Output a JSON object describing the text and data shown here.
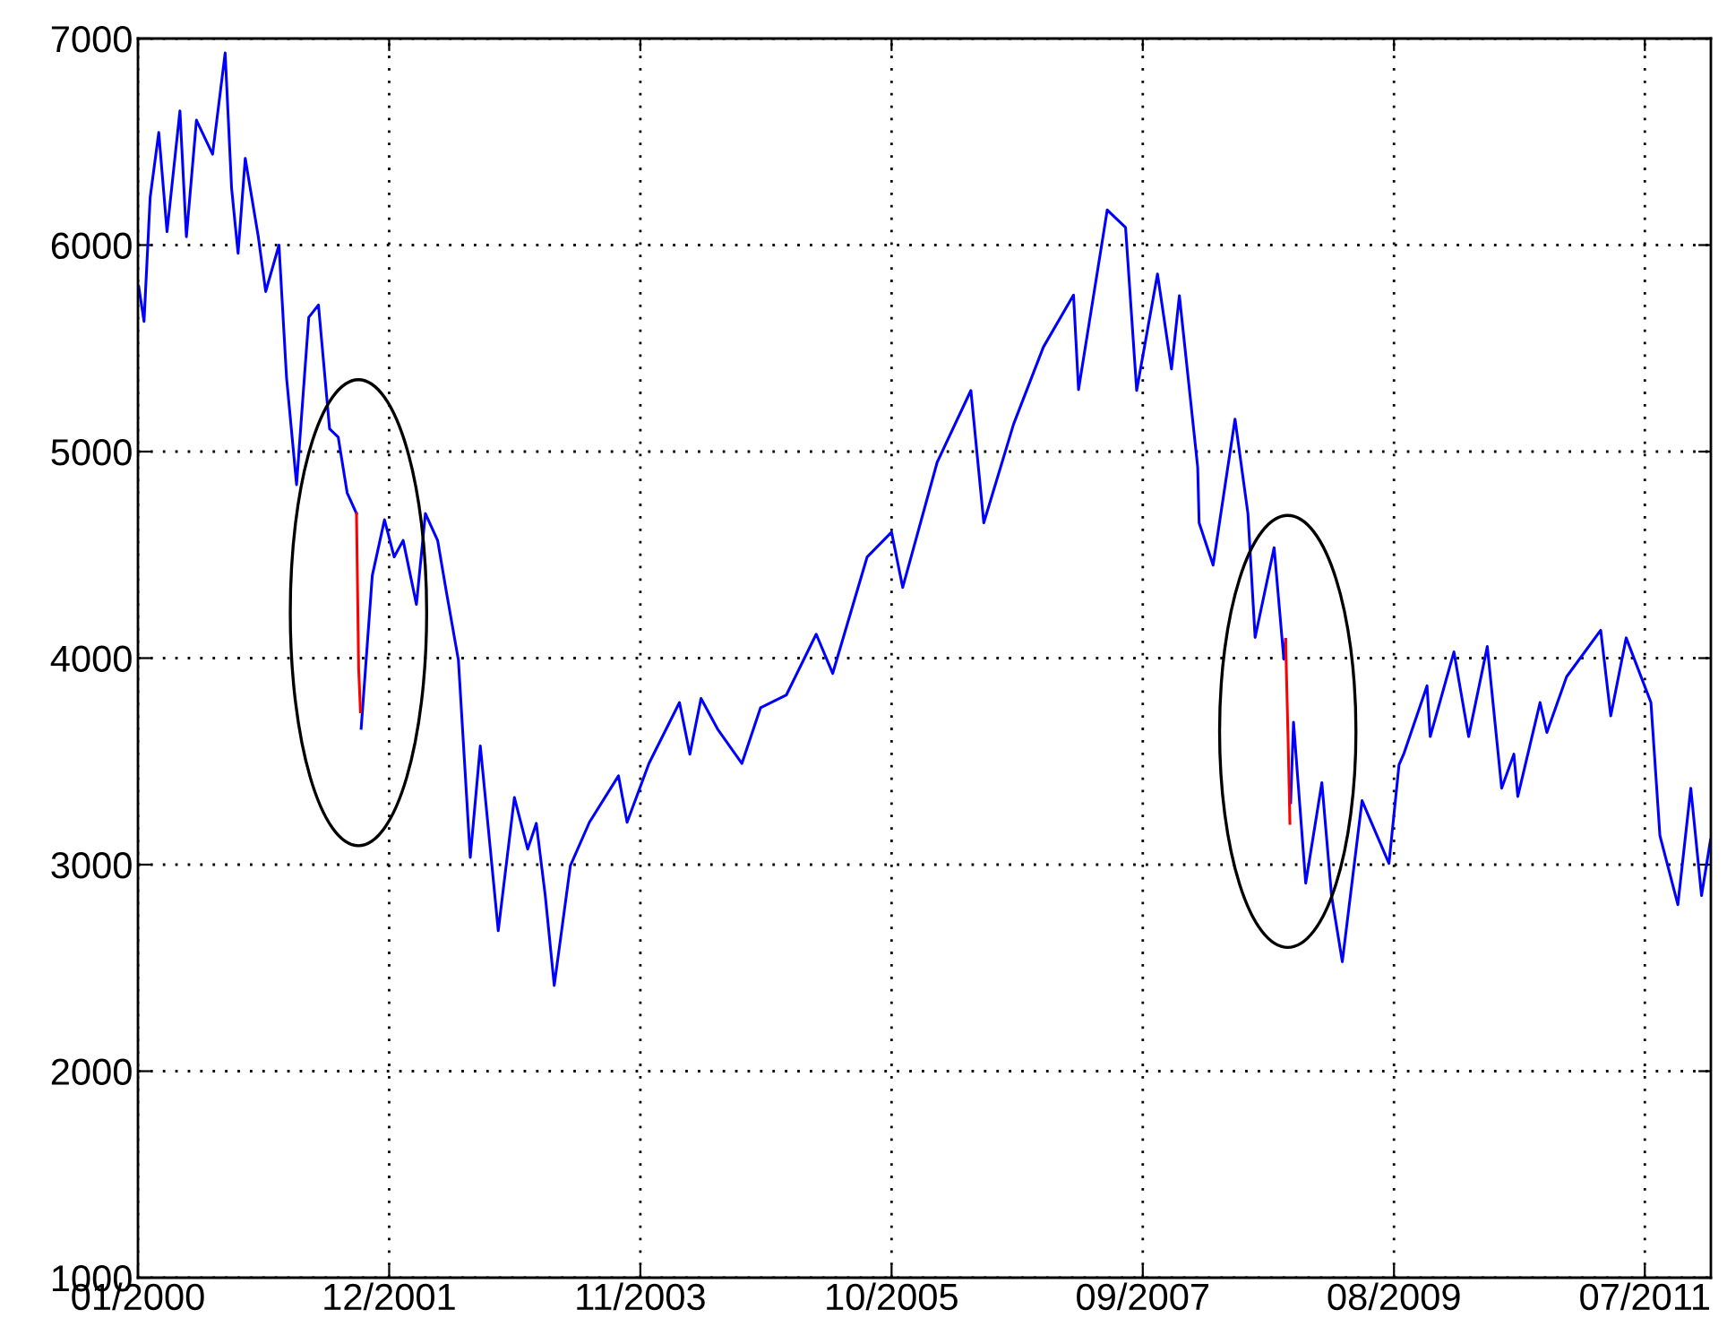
{
  "chart_data": {
    "type": "line",
    "series": [
      {
        "color": "#0000ff",
        "x": [
          "2000-01-03",
          "2000-01-18",
          "2000-02-04",
          "2000-02-28",
          "2000-03-22",
          "2000-04-27",
          "2000-05-15",
          "2000-06-12",
          "2000-07-27",
          "2000-08-31",
          "2000-09-18",
          "2000-10-06",
          "2000-10-26",
          "2000-12-01",
          "2000-12-22",
          "2001-01-28",
          "2001-02-18",
          "2001-03-18",
          "2001-04-21",
          "2001-05-18",
          "2001-06-18",
          "2001-07-12",
          "2001-08-06",
          "2001-09-01",
          "2001-09-05",
          "2001-09-14",
          "2001-10-15",
          "2001-11-18",
          "2001-12-15",
          "2002-01-09",
          "2002-02-15",
          "2002-03-12",
          "2002-04-15",
          "2002-05-09",
          "2002-06-12",
          "2002-07-15",
          "2002-08-12",
          "2002-10-01",
          "2002-11-15",
          "2002-12-22",
          "2003-01-15",
          "2003-02-09",
          "2003-03-06",
          "2003-04-20",
          "2003-06-12",
          "2003-09-01",
          "2003-09-25",
          "2003-11-25",
          "2004-02-18",
          "2004-03-18",
          "2004-04-18",
          "2004-06-03",
          "2004-08-10",
          "2004-10-01",
          "2004-12-12",
          "2005-03-05",
          "2005-04-20",
          "2005-07-25",
          "2005-10-01",
          "2005-11-01",
          "2006-02-05",
          "2006-05-10",
          "2006-06-15",
          "2006-09-06",
          "2006-11-28",
          "2007-02-20",
          "2007-03-06",
          "2007-05-25",
          "2007-07-15",
          "2007-08-15",
          "2007-10-12",
          "2007-11-20",
          "2007-12-12",
          "2008-02-01",
          "2008-02-05",
          "2008-03-15",
          "2008-05-15",
          "2008-06-20",
          "2008-07-10",
          "2008-09-01",
          "2008-09-28",
          "2008-10-03",
          "2008-10-10",
          "2008-10-17",
          "2008-10-25",
          "2008-11-28",
          "2009-01-12",
          "2009-02-08",
          "2009-03-10",
          "2009-05-04",
          "2009-07-18",
          "2009-08-15",
          "2009-08-28",
          "2009-11-01",
          "2009-11-10",
          "2010-01-15",
          "2010-02-25",
          "2010-04-18",
          "2010-05-28",
          "2010-07-01",
          "2010-07-12",
          "2010-09-12",
          "2010-10-01",
          "2010-11-25",
          "2011-02-28",
          "2011-03-28",
          "2011-05-10",
          "2011-07-18",
          "2011-08-12",
          "2011-10-01",
          "2011-11-06",
          "2011-12-06",
          "2011-12-31"
        ],
        "values": [
          5800,
          5630,
          6230,
          6545,
          6065,
          6650,
          6040,
          6605,
          6440,
          6930,
          6275,
          5960,
          6420,
          6045,
          5775,
          6000,
          5360,
          4840,
          5650,
          5710,
          5110,
          5070,
          4800,
          4700,
          null,
          3660,
          4400,
          4670,
          4490,
          4570,
          4260,
          4700,
          4570,
          4325,
          3990,
          3035,
          3575,
          2680,
          3325,
          3075,
          3200,
          2850,
          2415,
          2995,
          3205,
          3430,
          3205,
          3490,
          3785,
          3535,
          3805,
          3657,
          3490,
          3760,
          3822,
          4116,
          3926,
          4490,
          4610,
          4342,
          4948,
          5296,
          4655,
          5133,
          5506,
          5758,
          5300,
          6170,
          6085,
          5296,
          5860,
          5400,
          5755,
          4925,
          4655,
          4450,
          5157,
          4700,
          4100,
          4535,
          3995,
          4090,
          null,
          3300,
          3690,
          2910,
          3397,
          2850,
          2530,
          3310,
          3006,
          3483,
          3535,
          3866,
          3620,
          4030,
          3620,
          4056,
          3370,
          3535,
          3330,
          3785,
          3640,
          3910,
          4135,
          3720,
          4098,
          3785,
          3140,
          2806,
          3370,
          2850,
          3120
        ]
      },
      {
        "color": "#ff0000",
        "x": [
          "2001-09-01",
          "2001-09-07",
          "2001-09-12"
        ],
        "values": [
          4700,
          3950,
          3740
        ]
      },
      {
        "color": "#ff0000",
        "x": [
          "2008-10-03",
          "2008-10-10",
          "2008-10-15"
        ],
        "values": [
          4090,
          3600,
          3200
        ]
      }
    ],
    "xlim": [
      "2000-01",
      "2012-01"
    ],
    "xticks": [
      {
        "value": "2000-01",
        "label": "01/2000"
      },
      {
        "value": "2001-12",
        "label": "12/2001"
      },
      {
        "value": "2003-11",
        "label": "11/2003"
      },
      {
        "value": "2005-10",
        "label": "10/2005"
      },
      {
        "value": "2007-09",
        "label": "09/2007"
      },
      {
        "value": "2009-08",
        "label": "08/2009"
      },
      {
        "value": "2011-07",
        "label": "07/2011"
      }
    ],
    "ylim": [
      1000,
      7000
    ],
    "yticks": [
      1000,
      2000,
      3000,
      4000,
      5000,
      6000,
      7000
    ],
    "grid": true,
    "line_style": "solid",
    "legend": false
  }
}
